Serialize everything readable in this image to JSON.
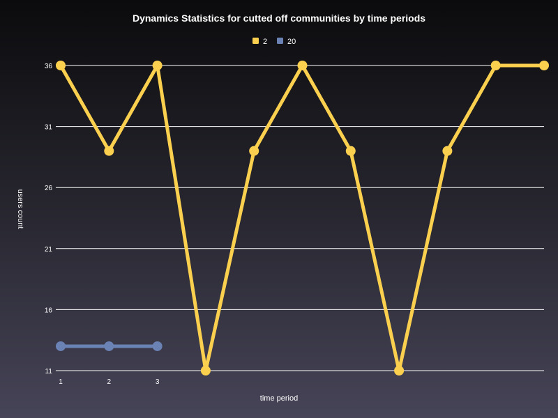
{
  "chart_data": {
    "type": "line",
    "title": "Dynamics Statistics for cutted off communities by time periods",
    "xlabel": "time period",
    "ylabel": "users count",
    "x_tick_labels": [
      "1",
      "2",
      "3"
    ],
    "y_ticks": [
      11,
      16,
      21,
      26,
      31,
      36
    ],
    "ylim": [
      11,
      36
    ],
    "legend_position": "top-center",
    "grid": "horizontal",
    "series": [
      {
        "name": "2",
        "color": "#fcd04f",
        "x": [
          1,
          2,
          3,
          4,
          5,
          6,
          7,
          8,
          9,
          10,
          11
        ],
        "values": [
          36,
          29,
          36,
          11,
          29,
          36,
          29,
          11,
          29,
          36,
          36
        ]
      },
      {
        "name": "20",
        "color": "#6b82b5",
        "x": [
          1,
          2,
          3
        ],
        "values": [
          13,
          13,
          13
        ]
      }
    ]
  }
}
